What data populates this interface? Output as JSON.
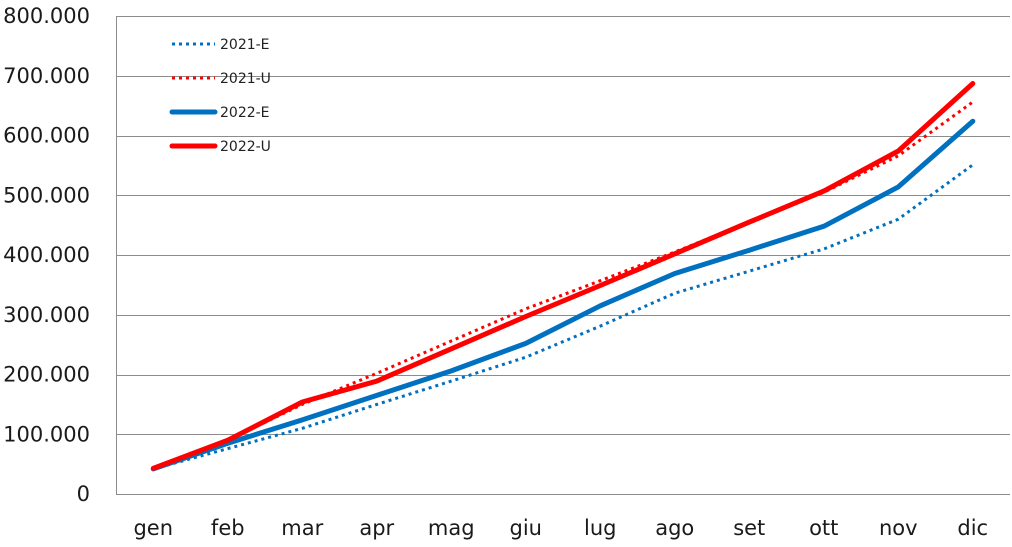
{
  "chart_data": {
    "type": "line",
    "title": "",
    "xlabel": "",
    "ylabel": "",
    "categories": [
      "gen",
      "feb",
      "mar",
      "apr",
      "mag",
      "giu",
      "lug",
      "ago",
      "set",
      "ott",
      "nov",
      "dic"
    ],
    "ylim": [
      0,
      800000
    ],
    "yticks": [
      0,
      100000,
      200000,
      300000,
      400000,
      500000,
      600000,
      700000,
      800000
    ],
    "ytick_labels": [
      "0",
      "100.000",
      "200.000",
      "300.000",
      "400.000",
      "500.000",
      "600.000",
      "700.000",
      "800.000"
    ],
    "grid": "horizontal",
    "legend_position": "top-left",
    "series": [
      {
        "name": "2021-E",
        "style": "dotted",
        "color": "#0070c0",
        "values": [
          42000,
          76000,
          110000,
          150000,
          189000,
          229000,
          281000,
          336000,
          373000,
          410000,
          460000,
          551000
        ]
      },
      {
        "name": "2021-U",
        "style": "dotted",
        "color": "#ff0000",
        "values": [
          43000,
          90000,
          150000,
          202000,
          256000,
          310000,
          357000,
          405000,
          455000,
          505000,
          566000,
          656000
        ]
      },
      {
        "name": "2022-E",
        "style": "solid",
        "color": "#0070c0",
        "values": [
          42000,
          85000,
          124000,
          165000,
          206000,
          252000,
          315000,
          369000,
          408000,
          448000,
          514000,
          624000
        ]
      },
      {
        "name": "2022-U",
        "style": "solid",
        "color": "#ff0000",
        "values": [
          43000,
          90000,
          154000,
          189000,
          243000,
          297000,
          349000,
          402000,
          455000,
          507000,
          574000,
          687000
        ]
      }
    ]
  }
}
